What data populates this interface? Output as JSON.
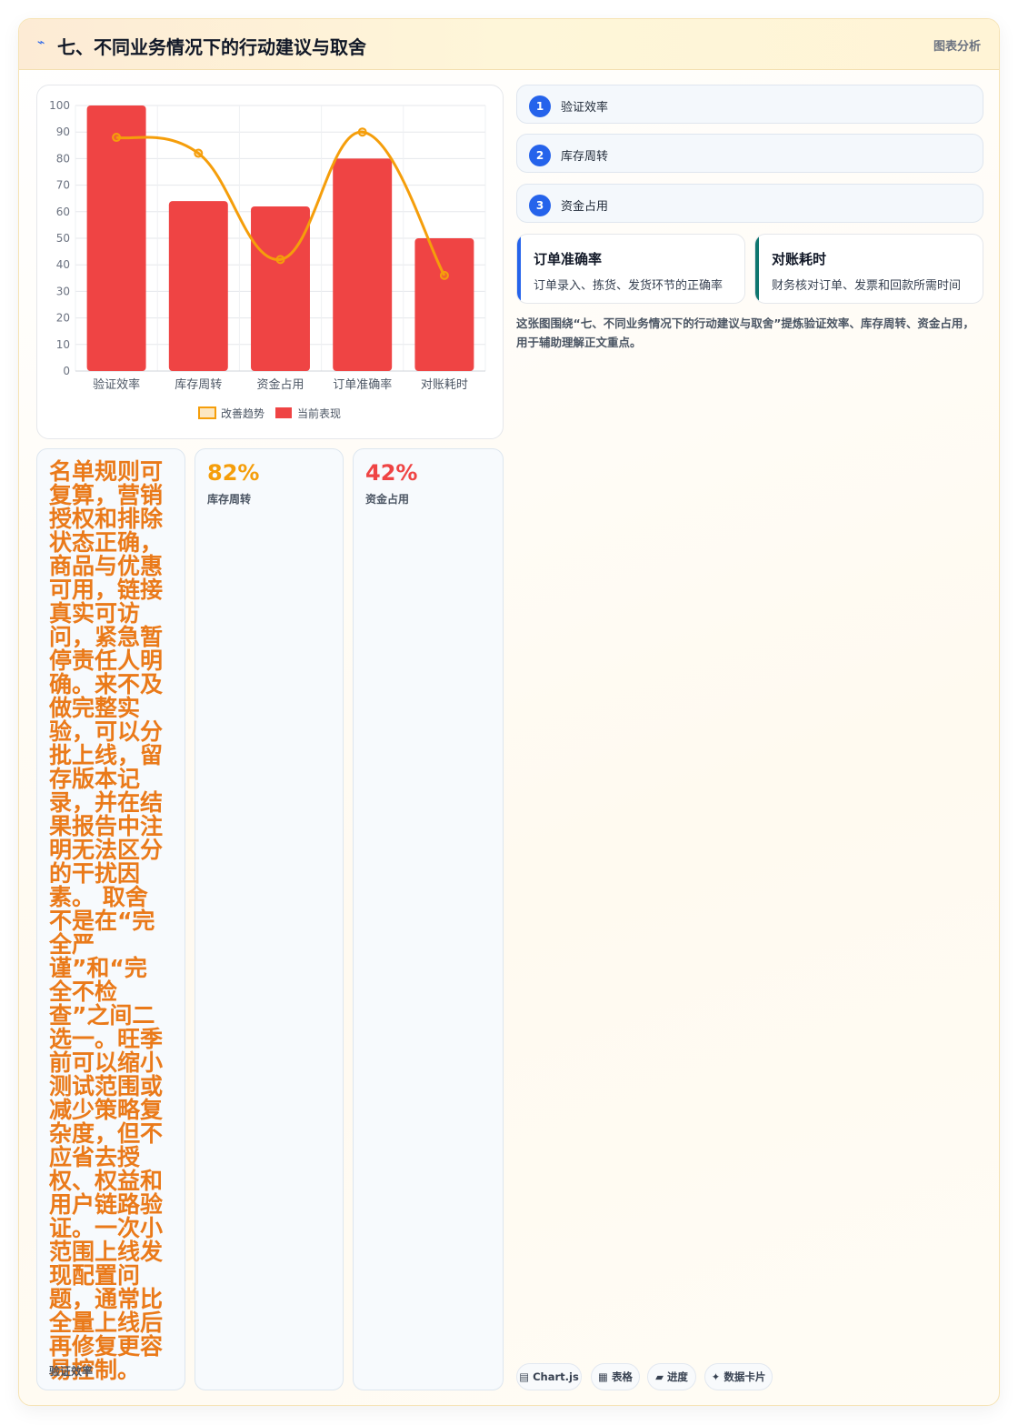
{
  "header": {
    "icon": "lightning-icon",
    "title": "七、不同业务情况下的行动建议与取舍",
    "tag": "图表分析"
  },
  "chart_data": {
    "type": "bar",
    "categories": [
      "验证效率",
      "库存周转",
      "资金占用",
      "订单准确率",
      "对账耗时"
    ],
    "series": [
      {
        "name": "当前表现",
        "type": "bar",
        "color": "#ef4444",
        "values": [
          100,
          64,
          62,
          80,
          50
        ]
      },
      {
        "name": "改善趋势",
        "type": "line",
        "color": "#f59e0b",
        "values": [
          88,
          82,
          42,
          90,
          36
        ]
      }
    ],
    "ylim": [
      0,
      100
    ],
    "yticks": [
      0,
      10,
      20,
      30,
      40,
      50,
      60,
      70,
      80,
      90,
      100
    ],
    "grid": true,
    "legend_position": "bottom",
    "legend_order": [
      "改善趋势",
      "当前表现"
    ]
  },
  "steps": [
    {
      "num": "1",
      "label": "验证效率"
    },
    {
      "num": "2",
      "label": "库存周转"
    },
    {
      "num": "3",
      "label": "资金占用"
    }
  ],
  "features": [
    {
      "title": "订单准确率",
      "desc": "订单录入、拣货、发货环节的正确率",
      "color": "#2563eb"
    },
    {
      "title": "对账耗时",
      "desc": "财务核对订单、发票和回款所需时间",
      "color": "#0f766e"
    }
  ],
  "caption": "这张图围绕“七、不同业务情况下的行动建议与取舍”提炼验证效率、库存周转、资金占用，用于辅助理解正文重点。",
  "stats": [
    {
      "value": "名单规则可复算，营销授权和排除状态正确，商品与优惠可用，链接真实可访问，紧急暂停责任人明确。来不及做完整实验，可以分批上线，留存版本记录，并在结果报告中注明无法区分的干扰因素。 取舍不是在“完全严谨”和“完全不检查”之间二选一。旺季前可以缩小测试范围或减少策略复杂度，但不应省去授权、权益和用户链路验证。一次小范围上线发现配置问题，通常比全量上线后再修复更容易控制。",
      "label": "验证效率",
      "color": "#ea7a1a"
    },
    {
      "value": "82%",
      "label": "库存周转",
      "color": "#f59e0b"
    },
    {
      "value": "42%",
      "label": "资金占用",
      "color": "#ef4444"
    }
  ],
  "chips": [
    {
      "icon": "chart-icon",
      "glyph": "▤",
      "label": "Chart.js"
    },
    {
      "icon": "table-icon",
      "glyph": "▦",
      "label": "表格"
    },
    {
      "icon": "progress-icon",
      "glyph": "▰",
      "label": "进度"
    },
    {
      "icon": "sparkle-icon",
      "glyph": "✦",
      "label": "数据卡片"
    }
  ]
}
